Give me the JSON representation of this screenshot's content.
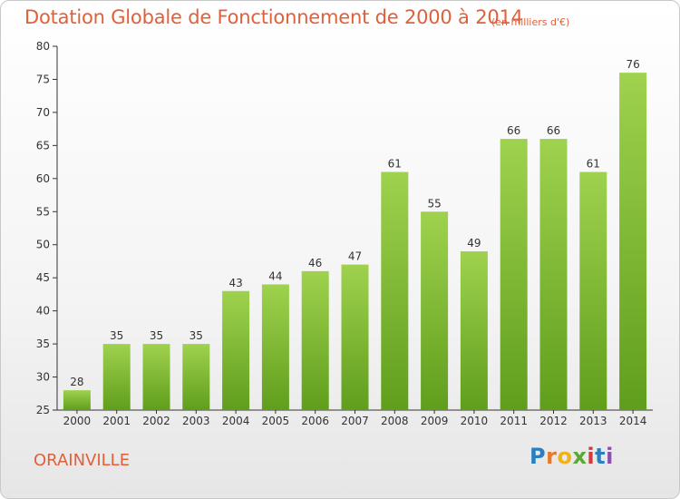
{
  "title": "Dotation Globale de Fonctionnement de 2000 à 2014",
  "subtitle": "(en milliers d'€)",
  "commune": "ORAINVILLE",
  "logo": {
    "letters": [
      "P",
      "r",
      "o",
      "x",
      "i",
      "t",
      "i"
    ],
    "colors": [
      "#2a7fc1",
      "#e8782a",
      "#f0b21c",
      "#5aa832",
      "#d23b3b",
      "#2a7fc1",
      "#8a4fb0"
    ]
  },
  "colors": {
    "bar": "#7ec13a",
    "title": "#e0603a",
    "axis": "#333333"
  },
  "chart_data": {
    "type": "bar",
    "categories": [
      "2000",
      "2001",
      "2002",
      "2003",
      "2004",
      "2005",
      "2006",
      "2007",
      "2008",
      "2009",
      "2010",
      "2011",
      "2012",
      "2013",
      "2014"
    ],
    "values": [
      28,
      35,
      35,
      35,
      43,
      44,
      46,
      47,
      61,
      55,
      49,
      66,
      66,
      61,
      76
    ],
    "data_labels": [
      "28",
      "35",
      "35",
      "35",
      "43",
      "44",
      "46",
      "47",
      "61",
      "55",
      "49",
      "66",
      "66",
      "61",
      "76"
    ],
    "ylim": [
      25,
      80
    ],
    "yticks": [
      25,
      30,
      35,
      40,
      45,
      50,
      55,
      60,
      65,
      70,
      75,
      80
    ],
    "ytick_labels": [
      "25",
      "30",
      "35",
      "40",
      "45",
      "50",
      "55",
      "60",
      "65",
      "70",
      "75",
      "80"
    ],
    "grid": false
  }
}
